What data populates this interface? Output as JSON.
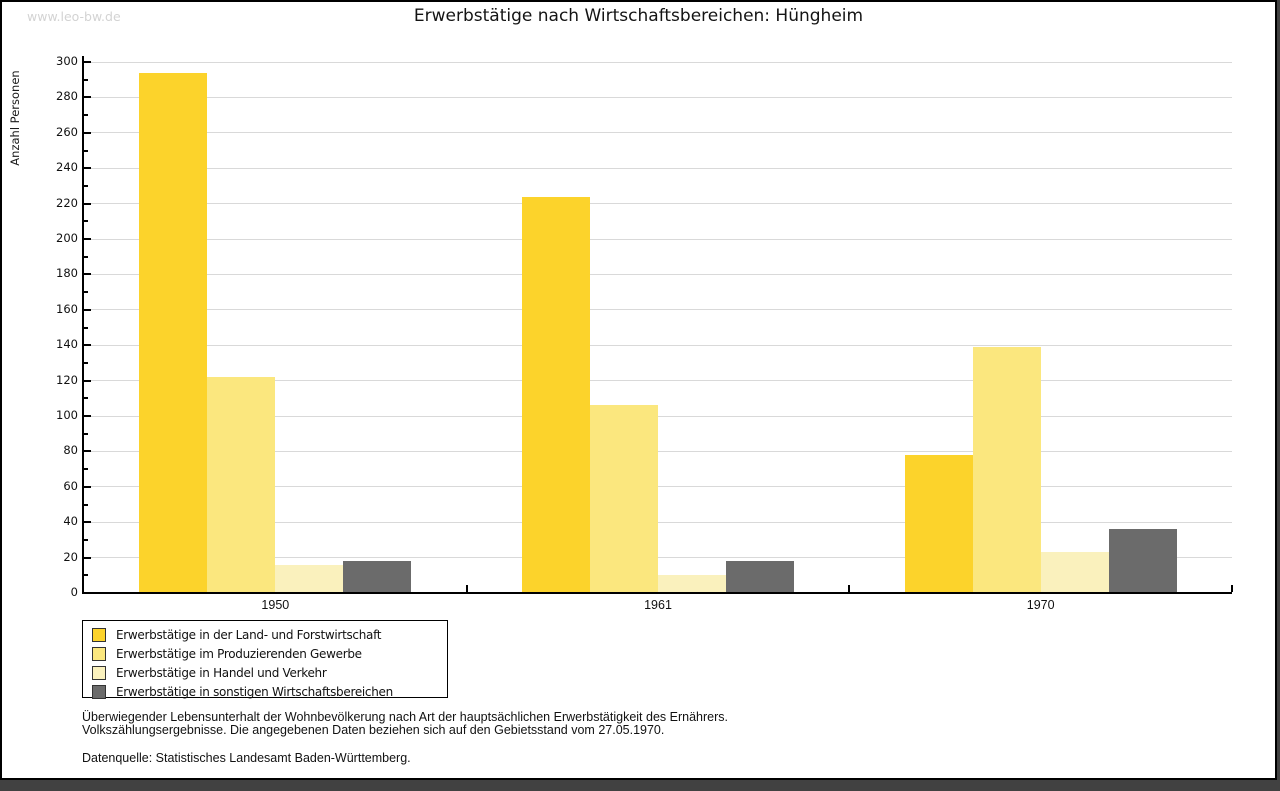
{
  "watermark": "www.leo-bw.de",
  "title": "Erwerbstätige nach Wirtschaftsbereichen: Hüngheim",
  "chart_data": {
    "type": "bar",
    "title": "Erwerbstätige nach Wirtschaftsbereichen: Hüngheim",
    "xlabel": "",
    "ylabel": "Anzahl Personen",
    "categories": [
      "1950",
      "1961",
      "1970"
    ],
    "series": [
      {
        "name": "Erwerbstätige in der Land- und Forstwirtschaft",
        "color": "#fcd32b",
        "values": [
          294,
          224,
          78
        ]
      },
      {
        "name": "Erwerbstätige im Produzierenden Gewerbe",
        "color": "#fbe77e",
        "values": [
          122,
          106,
          139
        ]
      },
      {
        "name": "Erwerbstätige in Handel und Verkehr",
        "color": "#faf1bd",
        "values": [
          16,
          10,
          23
        ]
      },
      {
        "name": "Erwerbstätige in sonstigen Wirtschaftsbereichen",
        "color": "#6b6b6b",
        "values": [
          18,
          18,
          36
        ]
      }
    ],
    "ylim": [
      0,
      300
    ],
    "y_major_step": 20,
    "y_minor_step": 10,
    "grid": "horizontal",
    "legend_position": "bottom-left"
  },
  "footer": {
    "line1": "Überwiegender Lebensunterhalt der Wohnbevölkerung nach Art der hauptsächlichen Erwerbstätigkeit des Ernährers.",
    "line2": "Volkszählungsergebnisse. Die angegebenen Daten beziehen sich auf den Gebietsstand vom 27.05.1970.",
    "source": "Datenquelle: Statistisches Landesamt Baden-Württemberg."
  },
  "colors": {
    "grid": "#d9d9d9",
    "axis": "#000000",
    "watermark": "#d3d3d3",
    "bottom_strip": "#414141"
  }
}
